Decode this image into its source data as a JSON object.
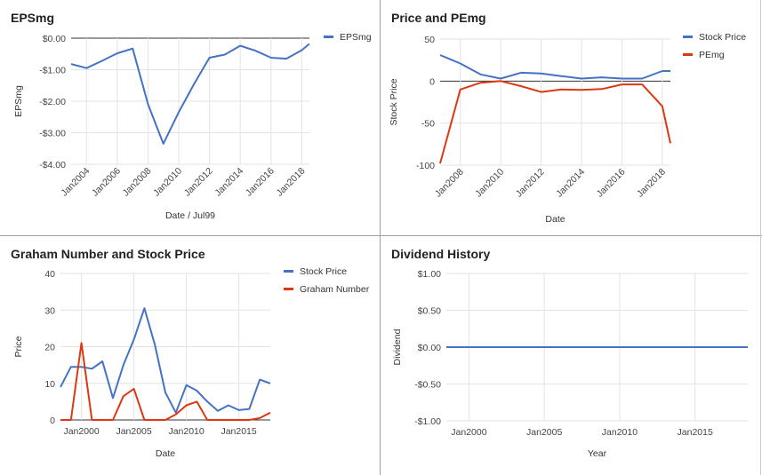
{
  "charts": [
    {
      "title": "EPSmg",
      "chart_data": {
        "type": "line",
        "title": "EPSmg",
        "xlabel": "Date / Jul99",
        "ylabel": "EPSmg",
        "x_ticks": [
          "Jan2004",
          "Jan2006",
          "Jan2008",
          "Jan2010",
          "Jan2012",
          "Jan2014",
          "Jan2016",
          "Jan2018"
        ],
        "y_ticks": [
          "$0.00",
          "-$1.00",
          "-$2.00",
          "-$3.00",
          "-$4.00"
        ],
        "ylim": [
          -4,
          0
        ],
        "grid": true,
        "legend": "top-right",
        "series": [
          {
            "name": "EPSmg",
            "color": "#4472c4",
            "x": [
              2003,
              2004,
              2005,
              2006,
              2007,
              2008,
              2009,
              2010,
              2011,
              2012,
              2013,
              2014,
              2015,
              2016,
              2017,
              2018,
              2018.5
            ],
            "values": [
              -0.82,
              -0.95,
              -0.72,
              -0.48,
              -0.33,
              -2.1,
              -3.35,
              -2.35,
              -1.45,
              -0.62,
              -0.52,
              -0.24,
              -0.4,
              -0.62,
              -0.65,
              -0.38,
              -0.18
            ]
          }
        ]
      }
    },
    {
      "title": "Price and PEmg",
      "chart_data": {
        "type": "line",
        "title": "Price and PEmg",
        "xlabel": "Date",
        "ylabel": "Stock Price",
        "x_ticks": [
          "Jan2008",
          "Jan2010",
          "Jan2012",
          "Jan2014",
          "Jan2016",
          "Jan2018"
        ],
        "y_ticks": [
          "50",
          "0",
          "-50",
          "-100"
        ],
        "ylim": [
          -100,
          50
        ],
        "grid": true,
        "legend": "top-right",
        "series": [
          {
            "name": "Stock Price",
            "color": "#4472c4",
            "x": [
              2007,
              2008,
              2009,
              2010,
              2011,
              2012,
              2013,
              2014,
              2015,
              2016,
              2017,
              2018,
              2018.4
            ],
            "values": [
              31,
              21,
              8,
              3,
              10,
              9,
              6,
              3,
              4.5,
              3,
              3,
              12,
              12
            ]
          },
          {
            "name": "PEmg",
            "color": "#dc3912",
            "x": [
              2007,
              2008,
              2009,
              2010,
              2011,
              2012,
              2013,
              2014,
              2015,
              2016,
              2017,
              2018,
              2018.4
            ],
            "values": [
              -98,
              -10,
              -2,
              0,
              -6,
              -13,
              -10,
              -10.5,
              -9.5,
              -4,
              -4,
              -30,
              -74
            ]
          }
        ]
      }
    },
    {
      "title": "Graham Number and Stock Price",
      "chart_data": {
        "type": "line",
        "title": "Graham Number and Stock Price",
        "xlabel": "Date",
        "ylabel": "Price",
        "x_ticks": [
          "Jan2000",
          "Jan2005",
          "Jan2010",
          "Jan2015"
        ],
        "y_ticks": [
          "40",
          "30",
          "20",
          "10",
          "0"
        ],
        "ylim": [
          0,
          40
        ],
        "grid": true,
        "legend": "top-right",
        "series": [
          {
            "name": "Stock Price",
            "color": "#4472c4",
            "x": [
              1998,
              1999,
              2000,
              2001,
              2002,
              2003,
              2004,
              2005,
              2006,
              2007,
              2008,
              2009,
              2010,
              2011,
              2012,
              2013,
              2014,
              2015,
              2016,
              2017,
              2018
            ],
            "values": [
              9,
              14.5,
              14.5,
              14,
              16,
              6,
              15,
              22,
              30.5,
              20.5,
              7.5,
              2,
              9.5,
              8,
              5,
              2.5,
              4,
              2.7,
              3,
              11,
              10
            ]
          },
          {
            "name": "Graham Number",
            "color": "#dc3912",
            "x": [
              1998,
              1999,
              2000,
              2001,
              2002,
              2003,
              2004,
              2005,
              2006,
              2007,
              2008,
              2009,
              2010,
              2011,
              2012,
              2013,
              2014,
              2015,
              2016,
              2017,
              2018
            ],
            "values": [
              0,
              0,
              21,
              0,
              0,
              0,
              6.5,
              8.5,
              0,
              0,
              0,
              1.5,
              4,
              5,
              0,
              0,
              0,
              0,
              0,
              0.5,
              2
            ]
          }
        ]
      }
    },
    {
      "title": "Dividend History",
      "chart_data": {
        "type": "line",
        "title": "Dividend History",
        "xlabel": "Year",
        "ylabel": "Dividend",
        "x_ticks": [
          "Jan2000",
          "Jan2005",
          "Jan2010",
          "Jan2015"
        ],
        "y_ticks": [
          "$1.00",
          "$0.50",
          "$0.00",
          "-$0.50",
          "-$1.00"
        ],
        "ylim": [
          -1,
          1
        ],
        "grid": true,
        "legend": "none",
        "series": [
          {
            "color": "#4472c4",
            "x": [
              1998.5,
              2018.5
            ],
            "values": [
              0,
              0
            ]
          }
        ]
      }
    }
  ]
}
